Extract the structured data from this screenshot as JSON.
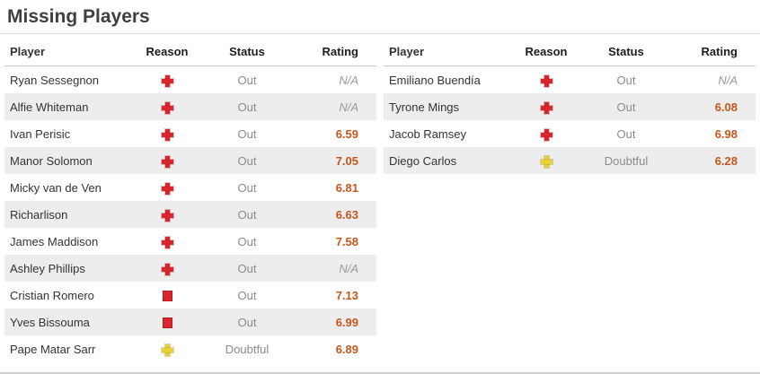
{
  "title": "Missing Players",
  "columns": {
    "player": "Player",
    "reason": "Reason",
    "status": "Status",
    "rating": "Rating"
  },
  "colors": {
    "rating": "#c5561c",
    "na": "#9a9a9a",
    "injury_icon": "#d8262c",
    "red_card_icon": "#d8262c",
    "doubtful_icon": "#e6d234",
    "row_stripe": "#ededed"
  },
  "tables": [
    {
      "rows": [
        {
          "player": "Ryan Sessegnon",
          "reason_type": "injury",
          "status": "Out",
          "rating": "N/A",
          "rating_type": "na"
        },
        {
          "player": "Alfie Whiteman",
          "reason_type": "injury",
          "status": "Out",
          "rating": "N/A",
          "rating_type": "na"
        },
        {
          "player": "Ivan Perisic",
          "reason_type": "injury",
          "status": "Out",
          "rating": "6.59",
          "rating_type": "num"
        },
        {
          "player": "Manor Solomon",
          "reason_type": "injury",
          "status": "Out",
          "rating": "7.05",
          "rating_type": "num"
        },
        {
          "player": "Micky van de Ven",
          "reason_type": "injury",
          "status": "Out",
          "rating": "6.81",
          "rating_type": "num"
        },
        {
          "player": "Richarlison",
          "reason_type": "injury",
          "status": "Out",
          "rating": "6.63",
          "rating_type": "num"
        },
        {
          "player": "James Maddison",
          "reason_type": "injury",
          "status": "Out",
          "rating": "7.58",
          "rating_type": "num"
        },
        {
          "player": "Ashley Phillips",
          "reason_type": "injury",
          "status": "Out",
          "rating": "N/A",
          "rating_type": "na"
        },
        {
          "player": "Cristian Romero",
          "reason_type": "suspended",
          "status": "Out",
          "rating": "7.13",
          "rating_type": "num"
        },
        {
          "player": "Yves Bissouma",
          "reason_type": "suspended",
          "status": "Out",
          "rating": "6.99",
          "rating_type": "num"
        },
        {
          "player": "Pape Matar Sarr",
          "reason_type": "doubtful",
          "status": "Doubtful",
          "rating": "6.89",
          "rating_type": "num"
        }
      ]
    },
    {
      "rows": [
        {
          "player": "Emiliano Buendía",
          "reason_type": "injury",
          "status": "Out",
          "rating": "N/A",
          "rating_type": "na"
        },
        {
          "player": "Tyrone Mings",
          "reason_type": "injury",
          "status": "Out",
          "rating": "6.08",
          "rating_type": "num"
        },
        {
          "player": "Jacob Ramsey",
          "reason_type": "injury",
          "status": "Out",
          "rating": "6.98",
          "rating_type": "num"
        },
        {
          "player": "Diego Carlos",
          "reason_type": "doubtful",
          "status": "Doubtful",
          "rating": "6.28",
          "rating_type": "num"
        }
      ]
    }
  ]
}
